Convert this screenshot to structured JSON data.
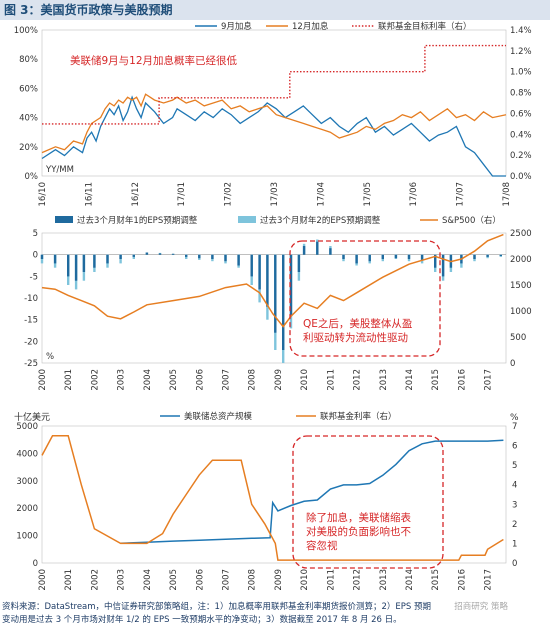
{
  "figure_title": "图 3：美国货币政策与美股预期",
  "source": {
    "line1": "资料来源：DataStream，中信证券研究部策略组，注：1）加息概率用联邦基金利率期货报价测算；2）EPS 预期",
    "line2": "变动用是过去 3 个月市场对财年 1/2 的 EPS 一致预期水平的净变动；3）数据截至 2017 年 8 月 26 日。",
    "watermark": "招商研究 策略"
  },
  "chart_data": [
    {
      "type": "line",
      "panel": "top",
      "unit_left": "YY/MM",
      "annotation": "美联储9月与12月加息概率已经很低",
      "legend": [
        {
          "name": "9月加息",
          "color": "#1f77b4",
          "style": "solid"
        },
        {
          "name": "12月加息",
          "color": "#e67e22",
          "style": "solid"
        },
        {
          "name": "联邦基金目标利率（右）",
          "color": "#d62728",
          "style": "dotted"
        }
      ],
      "x_ticks": [
        "16/10",
        "16/11",
        "16/12",
        "17/01",
        "17/02",
        "17/03",
        "17/04",
        "17/05",
        "17/06",
        "17/07",
        "17/08"
      ],
      "y_left_ticks": [
        "0%",
        "20%",
        "40%",
        "60%",
        "80%",
        "100%"
      ],
      "y_left_lim": [
        0,
        100
      ],
      "y_right_ticks": [
        "0.0%",
        "0.2%",
        "0.4%",
        "0.6%",
        "0.8%",
        "1.0%",
        "1.2%",
        "1.4%"
      ],
      "y_right_lim": [
        0,
        1.4
      ],
      "series": [
        {
          "name": "9月加息",
          "color": "#1f77b4",
          "x": [
            0,
            0.3,
            0.5,
            0.7,
            0.9,
            1.0,
            1.1,
            1.2,
            1.3,
            1.4,
            1.5,
            1.6,
            1.7,
            1.8,
            1.9,
            2.0,
            2.1,
            2.2,
            2.3,
            2.5,
            2.7,
            2.9,
            3.0,
            3.2,
            3.4,
            3.6,
            3.8,
            4.0,
            4.2,
            4.4,
            4.6,
            4.8,
            5.0,
            5.2,
            5.4,
            5.6,
            5.8,
            6.0,
            6.2,
            6.4,
            6.6,
            6.8,
            7.0,
            7.2,
            7.4,
            7.6,
            7.8,
            8.0,
            8.2,
            8.4,
            8.6,
            8.8,
            9.0,
            9.2,
            9.4,
            9.6,
            9.8,
            10.0,
            10.3
          ],
          "y": [
            12,
            18,
            14,
            20,
            16,
            26,
            30,
            24,
            34,
            40,
            46,
            42,
            48,
            38,
            44,
            54,
            46,
            40,
            50,
            44,
            36,
            40,
            46,
            42,
            38,
            44,
            40,
            46,
            42,
            36,
            40,
            44,
            50,
            46,
            40,
            44,
            48,
            42,
            36,
            40,
            34,
            30,
            36,
            40,
            30,
            34,
            28,
            32,
            36,
            30,
            24,
            28,
            30,
            34,
            20,
            16,
            8,
            0,
            0
          ]
        },
        {
          "name": "12月加息",
          "color": "#e67e22",
          "x": [
            0,
            0.3,
            0.5,
            0.7,
            0.9,
            1.0,
            1.1,
            1.2,
            1.3,
            1.4,
            1.5,
            1.6,
            1.7,
            1.8,
            1.9,
            2.0,
            2.1,
            2.2,
            2.3,
            2.5,
            2.7,
            2.9,
            3.0,
            3.2,
            3.4,
            3.6,
            3.8,
            4.0,
            4.2,
            4.4,
            4.6,
            4.8,
            5.0,
            5.2,
            5.4,
            5.6,
            5.8,
            6.0,
            6.2,
            6.4,
            6.6,
            6.8,
            7.0,
            7.2,
            7.4,
            7.6,
            7.8,
            8.0,
            8.2,
            8.4,
            8.6,
            8.8,
            9.0,
            9.2,
            9.4,
            9.6,
            9.8,
            10.0,
            10.3
          ],
          "y": [
            16,
            20,
            18,
            24,
            22,
            30,
            36,
            38,
            40,
            46,
            50,
            48,
            52,
            50,
            54,
            52,
            54,
            48,
            56,
            52,
            50,
            52,
            54,
            50,
            52,
            48,
            50,
            52,
            46,
            48,
            44,
            46,
            48,
            42,
            40,
            38,
            36,
            34,
            32,
            30,
            26,
            28,
            30,
            34,
            32,
            36,
            38,
            42,
            40,
            44,
            38,
            42,
            46,
            40,
            42,
            38,
            44,
            40,
            42
          ]
        },
        {
          "name": "联邦基金目标利率（右）",
          "color": "#d62728",
          "x": [
            0,
            2.6,
            2.6,
            5.5,
            5.5,
            8.5,
            8.5,
            10.3
          ],
          "y": [
            0.5,
            0.5,
            0.75,
            0.75,
            1.0,
            1.0,
            1.25,
            1.25
          ]
        }
      ]
    },
    {
      "type": "bar",
      "panel": "middle",
      "unit_left": "%",
      "legend": [
        {
          "name": "过去3个月财年1的EPS预期调整",
          "color": "#1f6a9e"
        },
        {
          "name": "过去3个月财年2的EPS预期调整",
          "color": "#7ec4dc"
        },
        {
          "name": "S&P500（右）",
          "color": "#e67e22"
        }
      ],
      "x_ticks": [
        "2000",
        "2001",
        "2002",
        "2003",
        "2004",
        "2005",
        "2006",
        "2007",
        "2008",
        "2009",
        "2010",
        "2011",
        "2012",
        "2013",
        "2014",
        "2015",
        "2016",
        "2017"
      ],
      "y_left_ticks": [
        "-25",
        "-20",
        "-15",
        "-10",
        "-5",
        "0",
        "5"
      ],
      "y_left_lim": [
        -25,
        5
      ],
      "y_right_ticks": [
        "0",
        "500",
        "1000",
        "1500",
        "2000",
        "2500"
      ],
      "y_right_lim": [
        0,
        2500
      ],
      "annotation": [
        "QE之后，美股整体从盈",
        "利驱动转为流动性驱动"
      ],
      "series": [
        {
          "name": "过去3个月财年1的EPS预期调整",
          "x": [
            2000,
            2000.5,
            2001,
            2001.3,
            2001.6,
            2002,
            2002.5,
            2003,
            2003.5,
            2004,
            2004.5,
            2005,
            2005.5,
            2006,
            2006.5,
            2007,
            2007.5,
            2008,
            2008.3,
            2008.6,
            2008.9,
            2009.2,
            2009.5,
            2009.8,
            2010,
            2010.5,
            2011,
            2011.5,
            2012,
            2012.5,
            2013,
            2013.5,
            2014,
            2014.5,
            2015,
            2015.3,
            2015.6,
            2016,
            2016.5,
            2017,
            2017.5
          ],
          "values": [
            -1,
            -2,
            -5,
            -6,
            -4,
            -3,
            -2,
            -1,
            -0.5,
            0.5,
            0.3,
            0.2,
            -0.5,
            -0.8,
            -1,
            -1.5,
            -2.5,
            -5,
            -8,
            -12,
            -18,
            -22,
            -14,
            -4,
            2,
            3,
            1.5,
            -1,
            -2,
            -1.5,
            -1,
            -0.8,
            -1,
            -1.2,
            -3,
            -5,
            -3,
            -2,
            -1,
            -0.5,
            -0.3
          ]
        },
        {
          "name": "过去3个月财年2的EPS预期调整",
          "x": [
            2000,
            2000.5,
            2001,
            2001.3,
            2001.6,
            2002,
            2002.5,
            2003,
            2003.5,
            2004,
            2004.5,
            2005,
            2005.5,
            2006,
            2006.5,
            2007,
            2007.5,
            2008,
            2008.3,
            2008.6,
            2008.9,
            2009.2,
            2009.5,
            2009.8,
            2010,
            2010.5,
            2011,
            2011.5,
            2012,
            2012.5,
            2013,
            2013.5,
            2014,
            2014.5,
            2015,
            2015.3,
            2015.6,
            2016,
            2016.5,
            2017,
            2017.5
          ],
          "values": [
            -2,
            -3,
            -7,
            -8,
            -6,
            -4,
            -3,
            -2,
            -1,
            0.5,
            0.4,
            0.2,
            -1,
            -1.2,
            -1.5,
            -2,
            -3,
            -7,
            -11,
            -15,
            -22,
            -25,
            -17,
            -6,
            2.5,
            3.5,
            2,
            -1.5,
            -2.5,
            -2,
            -1.5,
            -1,
            -1.5,
            -2,
            -4,
            -6,
            -4,
            -3,
            -1.5,
            -0.8,
            -0.5
          ]
        },
        {
          "name": "S&P500（右）",
          "x": [
            2000,
            2000.5,
            2001,
            2001.5,
            2002,
            2002.5,
            2003,
            2003.5,
            2004,
            2005,
            2006,
            2007,
            2007.8,
            2008.3,
            2008.8,
            2009.2,
            2009.5,
            2010,
            2010.5,
            2011,
            2011.5,
            2012,
            2013,
            2014,
            2015,
            2015.6,
            2016,
            2016.5,
            2017,
            2017.6
          ],
          "values": [
            1450,
            1420,
            1300,
            1200,
            1100,
            900,
            850,
            980,
            1120,
            1200,
            1280,
            1450,
            1520,
            1350,
            950,
            700,
            900,
            1150,
            1050,
            1300,
            1200,
            1350,
            1650,
            1900,
            2050,
            1950,
            2000,
            2150,
            2350,
            2470
          ]
        }
      ]
    },
    {
      "type": "line",
      "panel": "bottom",
      "unit_left": "十亿美元",
      "unit_right": "%",
      "legend": [
        {
          "name": "美联储总资产规模",
          "color": "#1f77b4"
        },
        {
          "name": "联邦基金利率（右）",
          "color": "#e67e22"
        }
      ],
      "x_ticks": [
        "2000",
        "2001",
        "2002",
        "2003",
        "2004",
        "2005",
        "2006",
        "2007",
        "2008",
        "2009",
        "2010",
        "2011",
        "2012",
        "2013",
        "2014",
        "2015",
        "2016",
        "2017"
      ],
      "y_left_ticks": [
        "0",
        "500",
        "1000",
        "1500",
        "2000",
        "2500",
        "3000",
        "3500",
        "4000",
        "4500",
        "5000"
      ],
      "y_left_lim": [
        0,
        5000
      ],
      "y_right_ticks": [
        "0",
        "1",
        "2",
        "3",
        "4",
        "5",
        "6",
        "7"
      ],
      "y_right_lim": [
        0,
        7
      ],
      "annotation": [
        "除了加息，美联储缩表",
        "对美股的负面影响也不",
        "容忽视"
      ],
      "series": [
        {
          "name": "美联储总资产规模",
          "x": [
            2003,
            2004,
            2005,
            2006,
            2007,
            2008,
            2008.7,
            2008.8,
            2009,
            2009.5,
            2010,
            2010.5,
            2011,
            2011.5,
            2012,
            2012.5,
            2013,
            2013.5,
            2014,
            2014.5,
            2015,
            2016,
            2017,
            2017.6
          ],
          "values": [
            720,
            760,
            800,
            830,
            870,
            900,
            920,
            2200,
            1900,
            2100,
            2250,
            2300,
            2700,
            2850,
            2850,
            2900,
            3200,
            3600,
            4100,
            4350,
            4450,
            4450,
            4450,
            4480
          ]
        },
        {
          "name": "联邦基金利率（右）",
          "x": [
            2000,
            2000.4,
            2001,
            2001.5,
            2002,
            2003,
            2004,
            2004.6,
            2005,
            2005.5,
            2006,
            2006.5,
            2007,
            2007.6,
            2008,
            2008.5,
            2008.9,
            2009,
            2015.9,
            2016,
            2016.9,
            2017,
            2017.3,
            2017.6
          ],
          "values": [
            5.5,
            6.5,
            6.5,
            4.0,
            1.75,
            1.0,
            1.0,
            1.5,
            2.5,
            3.5,
            4.5,
            5.25,
            5.25,
            5.25,
            3.0,
            2.0,
            1.0,
            0.15,
            0.15,
            0.4,
            0.4,
            0.7,
            0.95,
            1.2
          ]
        }
      ]
    }
  ]
}
